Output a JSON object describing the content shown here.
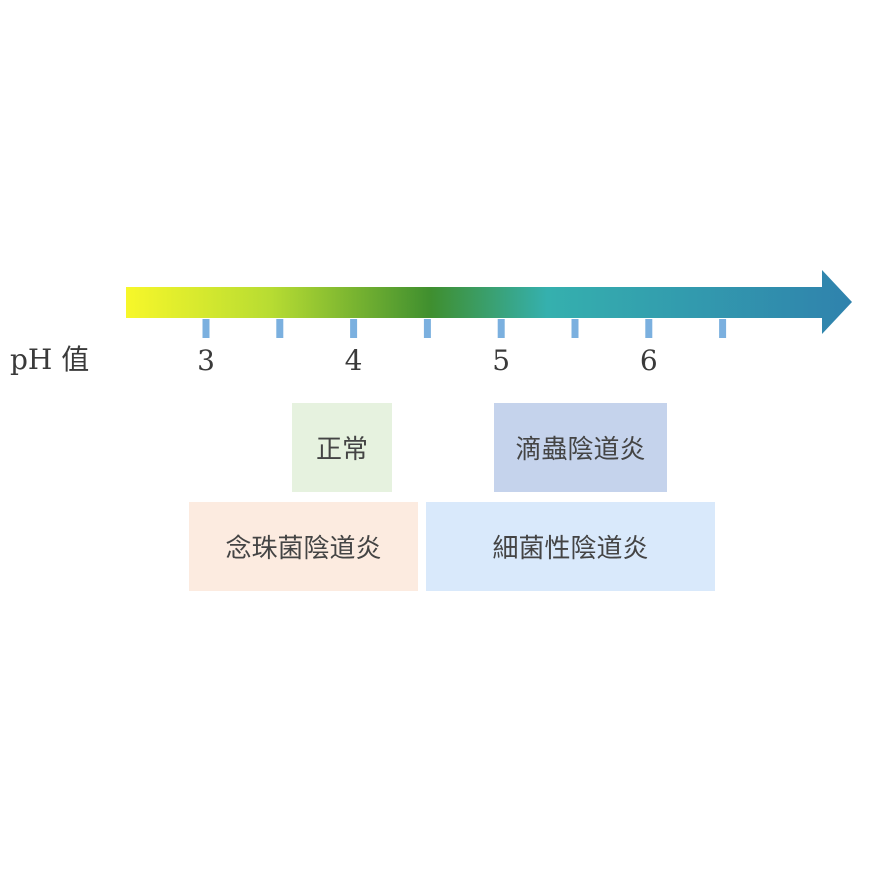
{
  "axis": {
    "label": "pH 值",
    "ticks": [
      {
        "label": "3"
      },
      {
        "label": ""
      },
      {
        "label": "4"
      },
      {
        "label": ""
      },
      {
        "label": "5"
      },
      {
        "label": ""
      },
      {
        "label": "6"
      },
      {
        "label": ""
      }
    ],
    "gradient_colors": [
      "#f7f72a",
      "#b7dc32",
      "#3f8f2f",
      "#35b0ae",
      "#2f82ad"
    ],
    "tick_color": "#7bb0df"
  },
  "ranges": [
    {
      "name": "normal",
      "label": "正常",
      "color": "#e6f2df"
    },
    {
      "name": "trichomonas",
      "label": "滴蟲陰道炎",
      "color": "#c5d3ec"
    },
    {
      "name": "candida",
      "label": "念珠菌陰道炎",
      "color": "#fcebe0"
    },
    {
      "name": "bacterial",
      "label": "細菌性陰道炎",
      "color": "#d9e9fb"
    }
  ]
}
